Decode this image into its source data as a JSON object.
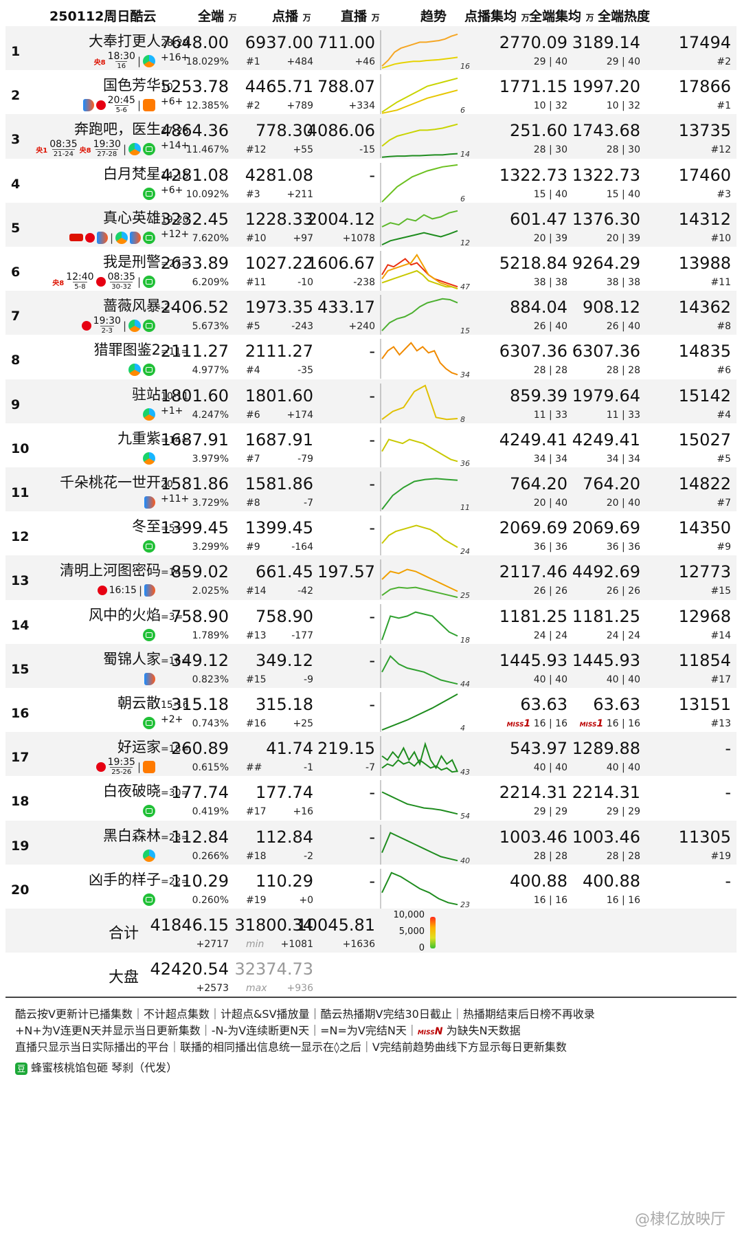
{
  "header": {
    "title": "250112周日酷云",
    "col_total": "全端",
    "col_vod": "点播",
    "col_live": "直播",
    "unit": "万",
    "col_trend": "趋势",
    "col_vod_avg": "点播集均",
    "col_total_avg": "全端集均",
    "col_heat": "全端热度"
  },
  "rows": [
    {
      "rank": "1",
      "name": "大奉打更人",
      "ep": "28-29",
      "chg": "+16+",
      "plat": [
        {
          "type": "tv",
          "logo": "央8",
          "time": "18:30",
          "days": "16"
        },
        {
          "sep": "|"
        },
        {
          "type": "tx"
        }
      ],
      "total": "7648.00",
      "share": "18.029%",
      "vod": "6937.00",
      "vod_rank": "#1",
      "vod_chg": "+484",
      "live": "711.00",
      "live_chg": "+46",
      "vod_avg": "2770.09",
      "total_avg": "3189.14",
      "eps1": "29 | 40",
      "eps2": "29 | 40",
      "heat": "17494",
      "heat_rank": "#2",
      "trend_num": "16",
      "trend": [
        [
          0.9,
          0.75,
          0.55,
          0.45,
          0.4,
          0.35,
          0.3,
          0.3,
          0.28,
          0.26,
          0.22,
          0.15,
          0.1
        ],
        [
          0.95,
          0.9,
          0.85,
          0.82,
          0.8,
          0.78,
          0.78,
          0.76,
          0.75,
          0.74,
          0.72,
          0.7,
          0.68
        ]
      ],
      "colors": [
        "#f5a623",
        "#e6d200"
      ]
    },
    {
      "rank": "2",
      "name": "国色芳华",
      "ep": "10",
      "chg": "+6+",
      "plat": [
        {
          "type": "yk"
        },
        {
          "type": "tvs",
          "logo": "",
          "time": "20:45",
          "days": "5-6"
        },
        {
          "sep": "|"
        },
        {
          "type": "mg"
        }
      ],
      "total": "5253.78",
      "share": "12.385%",
      "vod": "4465.71",
      "vod_rank": "#2",
      "vod_chg": "+789",
      "live": "788.07",
      "live_chg": "+334",
      "vod_avg": "1771.15",
      "total_avg": "1997.20",
      "eps1": "10 | 32",
      "eps2": "10 | 32",
      "heat": "17866",
      "heat_rank": "#1",
      "trend_num": "6",
      "trend": [
        [
          0.95,
          0.7,
          0.5,
          0.3,
          0.2,
          0.1
        ],
        [
          0.98,
          0.9,
          0.75,
          0.6,
          0.5,
          0.4
        ]
      ],
      "colors": [
        "#c8d400",
        "#e6c600"
      ]
    },
    {
      "rank": "3",
      "name": "奔跑吧，医生",
      "ep": "27-28",
      "chg": "+14+",
      "plat": [
        {
          "type": "tv",
          "logo": "央1",
          "time": "08:35",
          "days": "21-24"
        },
        {
          "type": "tv",
          "logo": "央8",
          "time": "19:30",
          "days": "27-28"
        },
        {
          "sep": "|"
        },
        {
          "type": "tx"
        },
        {
          "type": "iq"
        }
      ],
      "total": "4864.36",
      "share": "11.467%",
      "vod": "778.30",
      "vod_rank": "#12",
      "vod_chg": "+55",
      "live": "4086.06",
      "live_chg": "-15",
      "vod_avg": "251.60",
      "total_avg": "1743.68",
      "eps1": "28 | 30",
      "eps2": "28 | 30",
      "heat": "13735",
      "heat_rank": "#12",
      "trend_num": "14",
      "trend": [
        [
          0.7,
          0.55,
          0.45,
          0.4,
          0.35,
          0.3,
          0.3,
          0.28,
          0.25,
          0.2,
          0.15
        ],
        [
          0.98,
          0.96,
          0.95,
          0.95,
          0.94,
          0.94,
          0.93,
          0.92,
          0.92,
          0.9,
          0.89
        ]
      ],
      "colors": [
        "#c8d400",
        "#1e8c1e"
      ]
    },
    {
      "rank": "4",
      "name": "白月梵星",
      "ep": "14-15",
      "chg": "+6+",
      "plat": [
        {
          "type": "iq"
        }
      ],
      "total": "4281.08",
      "share": "10.092%",
      "vod": "4281.08",
      "vod_rank": "#3",
      "vod_chg": "+211",
      "live": "-",
      "live_chg": "",
      "vod_avg": "1322.73",
      "total_avg": "1322.73",
      "eps1": "15 | 40",
      "eps2": "15 | 40",
      "heat": "17460",
      "heat_rank": "#3",
      "trend_num": "6",
      "trend": [
        [
          0.98,
          0.6,
          0.35,
          0.2,
          0.1,
          0.05
        ]
      ],
      "colors": [
        "#6cc020"
      ]
    },
    {
      "rank": "5",
      "name": "真心英雄",
      "ep": "19-20",
      "chg": "+12+",
      "plat": [
        {
          "type": "ch"
        },
        {
          "type": "tv2"
        },
        {
          "type": "zj"
        },
        {
          "sep": "|"
        },
        {
          "type": "tx"
        },
        {
          "type": "yk"
        },
        {
          "type": "iq"
        }
      ],
      "total": "3232.45",
      "share": "7.620%",
      "vod": "1228.33",
      "vod_rank": "#10",
      "vod_chg": "+97",
      "live": "2004.12",
      "live_chg": "+1078",
      "vod_avg": "601.47",
      "total_avg": "1376.30",
      "eps1": "20 | 39",
      "eps2": "20 | 39",
      "heat": "14312",
      "heat_rank": "#10",
      "trend_num": "12",
      "trend": [
        [
          0.5,
          0.4,
          0.45,
          0.3,
          0.35,
          0.2,
          0.3,
          0.25,
          0.15,
          0.1
        ],
        [
          0.95,
          0.85,
          0.8,
          0.75,
          0.7,
          0.65,
          0.7,
          0.75,
          0.68,
          0.6
        ]
      ],
      "colors": [
        "#5cb82a",
        "#1e8c1e"
      ]
    },
    {
      "rank": "6",
      "name": "我是刑警",
      "ep": "=27=",
      "chg": "",
      "plat": [
        {
          "type": "tv",
          "logo": "央8",
          "time": "12:40",
          "days": "5-8"
        },
        {
          "type": "tv",
          "logo": "",
          "time": "08:35",
          "days": "30-32"
        },
        {
          "sep": "|"
        },
        {
          "type": "iq"
        }
      ],
      "total": "2633.89",
      "share": "6.209%",
      "vod": "1027.22",
      "vod_rank": "#11",
      "vod_chg": "-10",
      "live": "1606.67",
      "live_chg": "-238",
      "vod_avg": "5218.84",
      "total_avg": "9264.29",
      "eps1": "38 | 38",
      "eps2": "38 | 38",
      "heat": "13988",
      "heat_rank": "#11",
      "trend_num": "47",
      "trend": [
        [
          0.6,
          0.35,
          0.4,
          0.3,
          0.2,
          0.35,
          0.3,
          0.45,
          0.6,
          0.7,
          0.75,
          0.8,
          0.85,
          0.9
        ],
        [
          0.7,
          0.5,
          0.45,
          0.4,
          0.35,
          0.3,
          0.1,
          0.35,
          0.6,
          0.7,
          0.8,
          0.85,
          0.9,
          0.95
        ],
        [
          0.8,
          0.75,
          0.7,
          0.65,
          0.6,
          0.55,
          0.5,
          0.6,
          0.75,
          0.8,
          0.85,
          0.9,
          0.9,
          0.95
        ]
      ],
      "colors": [
        "#e83010",
        "#f0a000",
        "#c8c800"
      ]
    },
    {
      "rank": "7",
      "name": "蔷薇风暴",
      "ep": "-2-",
      "chg": "",
      "plat": [
        {
          "type": "tv",
          "logo": "",
          "time": "19:30",
          "days": "2-3"
        },
        {
          "sep": "|"
        },
        {
          "type": "tx"
        },
        {
          "type": "iq"
        }
      ],
      "total": "2406.52",
      "share": "5.673%",
      "vod": "1973.35",
      "vod_rank": "#5",
      "vod_chg": "-243",
      "live": "433.17",
      "live_chg": "+240",
      "vod_avg": "884.04",
      "total_avg": "908.12",
      "eps1": "26 | 40",
      "eps2": "26 | 40",
      "heat": "14362",
      "heat_rank": "#8",
      "trend_num": "15",
      "trend": [
        [
          0.9,
          0.7,
          0.6,
          0.55,
          0.45,
          0.3,
          0.2,
          0.15,
          0.1,
          0.12,
          0.2
        ]
      ],
      "colors": [
        "#4cb030"
      ]
    },
    {
      "rank": "8",
      "name": "猎罪图鉴2",
      "ep": "=11=",
      "chg": "",
      "plat": [
        {
          "type": "tx"
        },
        {
          "type": "iq"
        }
      ],
      "total": "2111.27",
      "share": "4.977%",
      "vod": "2111.27",
      "vod_rank": "#4",
      "vod_chg": "-35",
      "live": "-",
      "live_chg": "",
      "vod_avg": "6307.36",
      "total_avg": "6307.36",
      "eps1": "28 | 28",
      "eps2": "28 | 28",
      "heat": "14835",
      "heat_rank": "#6",
      "trend_num": "34",
      "trend": [
        [
          0.5,
          0.3,
          0.2,
          0.4,
          0.25,
          0.1,
          0.3,
          0.2,
          0.35,
          0.3,
          0.6,
          0.75,
          0.85,
          0.9
        ]
      ],
      "colors": [
        "#f08a00"
      ]
    },
    {
      "rank": "9",
      "name": "驻站",
      "ep": "10-11",
      "chg": "+1+",
      "plat": [
        {
          "type": "tx"
        }
      ],
      "total": "1801.60",
      "share": "4.247%",
      "vod": "1801.60",
      "vod_rank": "#6",
      "vod_chg": "+174",
      "live": "-",
      "live_chg": "",
      "vod_avg": "859.39",
      "total_avg": "1979.64",
      "eps1": "11 | 33",
      "eps2": "11 | 33",
      "heat": "15142",
      "heat_rank": "#4",
      "trend_num": "8",
      "trend": [
        [
          0.9,
          0.7,
          0.6,
          0.2,
          0.05,
          0.85,
          0.9,
          0.88
        ]
      ],
      "colors": [
        "#e0c000"
      ]
    },
    {
      "rank": "10",
      "name": "九重紫",
      "ep": "=14=",
      "chg": "",
      "plat": [
        {
          "type": "tx"
        }
      ],
      "total": "1687.91",
      "share": "3.979%",
      "vod": "1687.91",
      "vod_rank": "#7",
      "vod_chg": "-79",
      "live": "-",
      "live_chg": "",
      "vod_avg": "4249.41",
      "total_avg": "4249.41",
      "eps1": "34 | 34",
      "eps2": "34 | 34",
      "heat": "15027",
      "heat_rank": "#5",
      "trend_num": "36",
      "trend": [
        [
          0.6,
          0.3,
          0.35,
          0.4,
          0.3,
          0.35,
          0.4,
          0.5,
          0.6,
          0.7,
          0.8,
          0.85
        ]
      ],
      "colors": [
        "#c8c800"
      ]
    },
    {
      "rank": "11",
      "name": "千朵桃花一世开",
      "ep": "20",
      "chg": "+11+",
      "plat": [
        {
          "type": "yk"
        }
      ],
      "total": "1581.86",
      "share": "3.729%",
      "vod": "1581.86",
      "vod_rank": "#8",
      "vod_chg": "-7",
      "live": "-",
      "live_chg": "",
      "vod_avg": "764.20",
      "total_avg": "764.20",
      "eps1": "20 | 40",
      "eps2": "20 | 40",
      "heat": "14822",
      "heat_rank": "#7",
      "trend_num": "11",
      "trend": [
        [
          0.95,
          0.6,
          0.4,
          0.25,
          0.2,
          0.18,
          0.2,
          0.22
        ]
      ],
      "colors": [
        "#2ea02e"
      ]
    },
    {
      "rank": "12",
      "name": "冬至",
      "ep": "=5=",
      "chg": "",
      "plat": [
        {
          "type": "iq"
        }
      ],
      "total": "1399.45",
      "share": "3.299%",
      "vod": "1399.45",
      "vod_rank": "#9",
      "vod_chg": "-164",
      "live": "-",
      "live_chg": "",
      "vod_avg": "2069.69",
      "total_avg": "2069.69",
      "eps1": "36 | 36",
      "eps2": "36 | 36",
      "heat": "14350",
      "heat_rank": "#9",
      "trend_num": "24",
      "trend": [
        [
          0.7,
          0.5,
          0.4,
          0.35,
          0.3,
          0.25,
          0.3,
          0.35,
          0.45,
          0.6,
          0.7,
          0.8
        ]
      ],
      "colors": [
        "#c8c800"
      ]
    },
    {
      "rank": "13",
      "name": "清明上河图密码",
      "ep": "=14=",
      "chg": "",
      "plat": [
        {
          "type": "tv",
          "logo": "",
          "time": "16:15",
          "days": ""
        },
        {
          "sep": "|"
        },
        {
          "type": "yk"
        }
      ],
      "total": "859.02",
      "share": "2.025%",
      "vod": "661.45",
      "vod_rank": "#14",
      "vod_chg": "-42",
      "live": "197.57",
      "live_chg": "",
      "vod_avg": "2117.46",
      "total_avg": "4492.69",
      "eps1": "26 | 26",
      "eps2": "26 | 26",
      "heat": "12773",
      "heat_rank": "#15",
      "trend_num": "25",
      "trend": [
        [
          0.5,
          0.3,
          0.35,
          0.25,
          0.3,
          0.4,
          0.5,
          0.6,
          0.7,
          0.8
        ],
        [
          0.9,
          0.75,
          0.7,
          0.72,
          0.7,
          0.75,
          0.8,
          0.85,
          0.9,
          0.95
        ]
      ],
      "colors": [
        "#f0a000",
        "#4cb030"
      ]
    },
    {
      "rank": "14",
      "name": "风中的火焰",
      "ep": "=3=",
      "chg": "",
      "plat": [
        {
          "type": "iq"
        }
      ],
      "total": "758.90",
      "share": "1.789%",
      "vod": "758.90",
      "vod_rank": "#13",
      "vod_chg": "-177",
      "live": "-",
      "live_chg": "",
      "vod_avg": "1181.25",
      "total_avg": "1181.25",
      "eps1": "24 | 24",
      "eps2": "24 | 24",
      "heat": "12968",
      "heat_rank": "#14",
      "trend_num": "18",
      "trend": [
        [
          0.9,
          0.3,
          0.35,
          0.3,
          0.2,
          0.25,
          0.3,
          0.5,
          0.7,
          0.8
        ]
      ],
      "colors": [
        "#2ea02e"
      ]
    },
    {
      "rank": "15",
      "name": "蜀锦人家",
      "ep": "=16=",
      "chg": "",
      "plat": [
        {
          "type": "yk"
        }
      ],
      "total": "349.12",
      "share": "0.823%",
      "vod": "349.12",
      "vod_rank": "#15",
      "vod_chg": "-9",
      "live": "-",
      "live_chg": "",
      "vod_avg": "1445.93",
      "total_avg": "1445.93",
      "eps1": "40 | 40",
      "eps2": "40 | 40",
      "heat": "11854",
      "heat_rank": "#17",
      "trend_num": "44",
      "trend": [
        [
          0.6,
          0.2,
          0.4,
          0.5,
          0.55,
          0.6,
          0.7,
          0.8,
          0.85,
          0.9
        ]
      ],
      "colors": [
        "#2ea02e"
      ]
    },
    {
      "rank": "16",
      "name": "朝云散",
      "ep": "15-16",
      "chg": "+2+",
      "plat": [
        {
          "type": "iq"
        }
      ],
      "total": "315.18",
      "share": "0.743%",
      "vod": "315.18",
      "vod_rank": "#16",
      "vod_chg": "+25",
      "live": "-",
      "live_chg": "",
      "vod_avg": "63.63",
      "total_avg": "63.63",
      "miss_label": "MISS",
      "miss_n": "1",
      "eps1": "16 | 16",
      "eps2": "16 | 16",
      "heat": "13151",
      "heat_rank": "#13",
      "trend_num": "4",
      "trend": [
        [
          0.95,
          0.7,
          0.4,
          0.05
        ]
      ],
      "colors": [
        "#1e8c1e"
      ]
    },
    {
      "rank": "17",
      "name": "好运家",
      "ep": "=18=",
      "chg": "",
      "plat": [
        {
          "type": "tvs2",
          "logo": "",
          "time": "19:35",
          "days": "25-26"
        },
        {
          "sep": "|"
        },
        {
          "type": "mg"
        }
      ],
      "total": "260.89",
      "share": "0.615%",
      "vod": "41.74",
      "vod_rank": "##",
      "vod_chg": "-1",
      "live": "219.15",
      "live_chg": "-7",
      "vod_avg": "543.97",
      "total_avg": "1289.88",
      "eps1": "40 | 40",
      "eps2": "40 | 40",
      "heat": "-",
      "heat_rank": "",
      "trend_num": "43",
      "trend": [
        [
          0.5,
          0.6,
          0.4,
          0.55,
          0.3,
          0.6,
          0.4,
          0.7,
          0.2,
          0.6,
          0.8,
          0.5,
          0.7,
          0.6,
          0.9
        ],
        [
          0.8,
          0.7,
          0.75,
          0.6,
          0.7,
          0.65,
          0.75,
          0.6,
          0.7,
          0.8,
          0.75,
          0.85,
          0.8,
          0.9,
          0.88
        ]
      ],
      "colors": [
        "#1e8c1e",
        "#1e8c1e"
      ]
    },
    {
      "rank": "18",
      "name": "白夜破晓",
      "ep": "=30=",
      "chg": "",
      "plat": [
        {
          "type": "iq"
        }
      ],
      "total": "177.74",
      "share": "0.419%",
      "vod": "177.74",
      "vod_rank": "#17",
      "vod_chg": "+16",
      "live": "-",
      "live_chg": "",
      "vod_avg": "2214.31",
      "total_avg": "2214.31",
      "eps1": "29 | 29",
      "eps2": "29 | 29",
      "heat": "-",
      "heat_rank": "",
      "trend_num": "54",
      "trend": [
        [
          0.3,
          0.4,
          0.5,
          0.6,
          0.65,
          0.7,
          0.72,
          0.75,
          0.8,
          0.85
        ]
      ],
      "colors": [
        "#1e8c1e"
      ]
    },
    {
      "rank": "19",
      "name": "黑白森林",
      "ep": "=23=",
      "chg": "",
      "plat": [
        {
          "type": "tx"
        }
      ],
      "total": "112.84",
      "share": "0.266%",
      "vod": "112.84",
      "vod_rank": "#18",
      "vod_chg": "-2",
      "live": "-",
      "live_chg": "",
      "vod_avg": "1003.46",
      "total_avg": "1003.46",
      "eps1": "28 | 28",
      "eps2": "28 | 28",
      "heat": "11305",
      "heat_rank": "#19",
      "trend_num": "40",
      "trend": [
        [
          0.7,
          0.2,
          0.3,
          0.4,
          0.5,
          0.6,
          0.7,
          0.8,
          0.85,
          0.9
        ]
      ],
      "colors": [
        "#1e8c1e"
      ]
    },
    {
      "rank": "20",
      "name": "凶手的样子",
      "ep": "=22=",
      "chg": "",
      "plat": [
        {
          "type": "iq"
        }
      ],
      "total": "110.29",
      "share": "0.260%",
      "vod": "110.29",
      "vod_rank": "#19",
      "vod_chg": "+0",
      "live": "-",
      "live_chg": "",
      "vod_avg": "400.88",
      "total_avg": "400.88",
      "eps1": "16 | 16",
      "eps2": "16 | 16",
      "heat": "-",
      "heat_rank": "",
      "trend_num": "23",
      "trend": [
        [
          0.6,
          0.1,
          0.2,
          0.35,
          0.5,
          0.6,
          0.75,
          0.85,
          0.9
        ]
      ],
      "colors": [
        "#1e8c1e"
      ]
    }
  ],
  "total": {
    "label": "合计",
    "total": "41846.15",
    "total_chg": "+2717",
    "vod": "31800.34",
    "vod_note": "min",
    "vod_chg": "+1081",
    "live": "10045.81",
    "live_chg": "+1636",
    "legend": [
      "10,000",
      "5,000",
      "0"
    ]
  },
  "market": {
    "label": "大盘",
    "total": "42420.54",
    "total_chg": "+2573",
    "vod": "32374.73",
    "vod_note": "max",
    "vod_chg": "+936"
  },
  "footer": {
    "line1": "酷云按V更新计已播集数｜不计超点集数｜计超点&SV播放量｜酷云热播期V完结30日截止｜热播期结束后日榜不再收录",
    "line2a": "+N+为V连更N天并显示当日更新集数｜-N-为V连续断更N天｜=N=为V完结N天｜",
    "line2_miss": "MISS",
    "line2_n": "N",
    "line2b": "为缺失N天数据",
    "line3": "直播只显示当日实际播出的平台｜联播的相同播出信息统一显示在◊之后｜V完结前趋势曲线下方显示每日更新集数",
    "line4": "蜂蜜核桃馅包砸 琴刹（代发）",
    "dou": "豆",
    "watermark": "@棣亿放映厅"
  }
}
